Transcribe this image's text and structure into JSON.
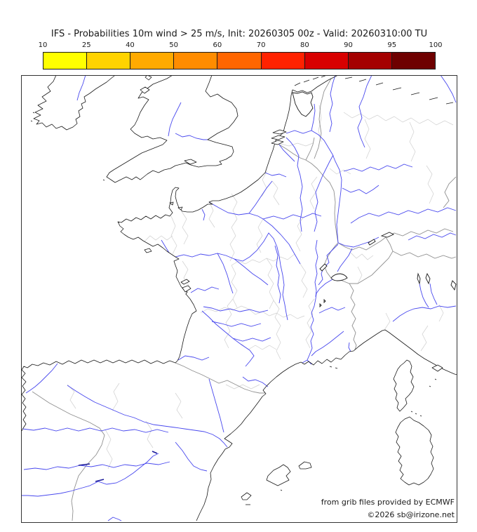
{
  "title": "IFS - Probabilities 10m wind > 25 m/s, Init: 20260305 00z - Valid: 20260310:00 TU",
  "colorbar": {
    "ticks": [
      "10",
      "25",
      "40",
      "50",
      "60",
      "70",
      "80",
      "90",
      "95",
      "100"
    ],
    "colors": [
      "#ffff00",
      "#ffd300",
      "#ffaa00",
      "#ff8c00",
      "#ff6600",
      "#ff2200",
      "#d80000",
      "#a40000",
      "#6e0000"
    ]
  },
  "map": {
    "attribution_line1": "from grib files provided by ECMWF",
    "attribution_line2": "©2026 sb@irizone.net",
    "colors": {
      "background": "#ffffff",
      "coastline": "#1a1a1a",
      "rivers": "#4848ee",
      "reservoirs": "#1a1a99",
      "country_borders": "#909090",
      "department_borders": "#cfcfcf",
      "frame": "#333333"
    }
  }
}
